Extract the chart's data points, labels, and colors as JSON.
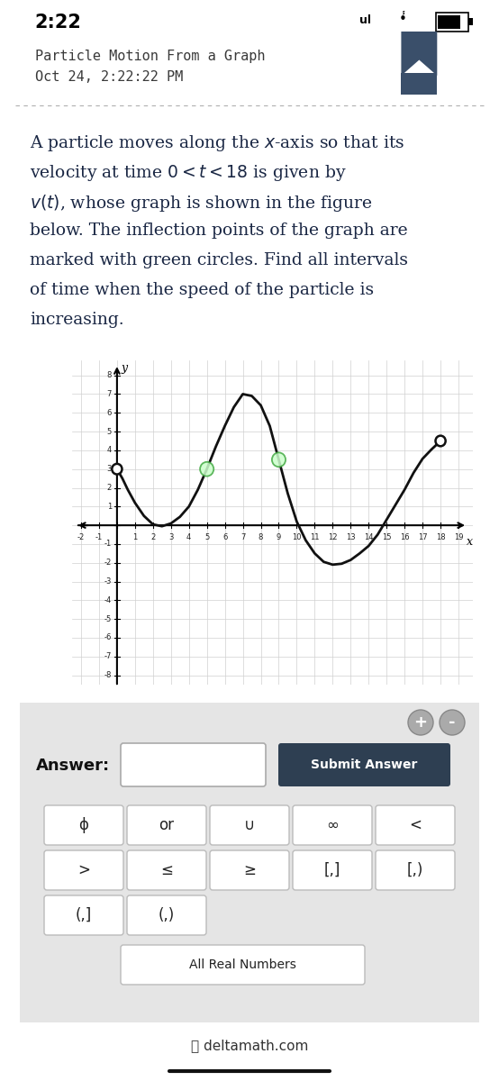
{
  "status_bar": "2:22",
  "title_line1": "Particle Motion From a Graph",
  "title_line2": "Oct 24, 2:22:22 PM",
  "curve_points_x": [
    0,
    0.3,
    0.6,
    1.0,
    1.5,
    2.0,
    2.5,
    3.0,
    3.5,
    4.0,
    4.5,
    5.0,
    5.5,
    6.0,
    6.5,
    7.0,
    7.5,
    8.0,
    8.5,
    9.0,
    9.5,
    10.0,
    10.5,
    11.0,
    11.5,
    12.0,
    12.5,
    13.0,
    13.5,
    14.0,
    14.5,
    15.0,
    15.5,
    16.0,
    16.5,
    17.0,
    17.5,
    18.0
  ],
  "curve_points_y": [
    3.0,
    2.5,
    1.9,
    1.2,
    0.5,
    0.05,
    -0.05,
    0.1,
    0.45,
    1.0,
    1.9,
    3.0,
    4.2,
    5.3,
    6.3,
    7.0,
    6.9,
    6.4,
    5.3,
    3.5,
    1.7,
    0.2,
    -0.8,
    -1.5,
    -1.95,
    -2.1,
    -2.05,
    -1.85,
    -1.5,
    -1.1,
    -0.5,
    0.3,
    1.1,
    1.9,
    2.8,
    3.55,
    4.05,
    4.5
  ],
  "inflection_points": [
    [
      5.0,
      3.0
    ],
    [
      9.0,
      3.5
    ]
  ],
  "open_circles": [
    [
      0,
      3.0
    ],
    [
      18,
      4.5
    ]
  ],
  "xlim": [
    -2.5,
    19.8
  ],
  "ylim": [
    -8.5,
    8.8
  ],
  "curve_color": "#111111",
  "grid_color": "#d0d0d0",
  "bg_color": "#ffffff",
  "submit_btn_color": "#2e3f52",
  "answer_panel_color": "#e8e8e8",
  "footer": "deltamath.com"
}
